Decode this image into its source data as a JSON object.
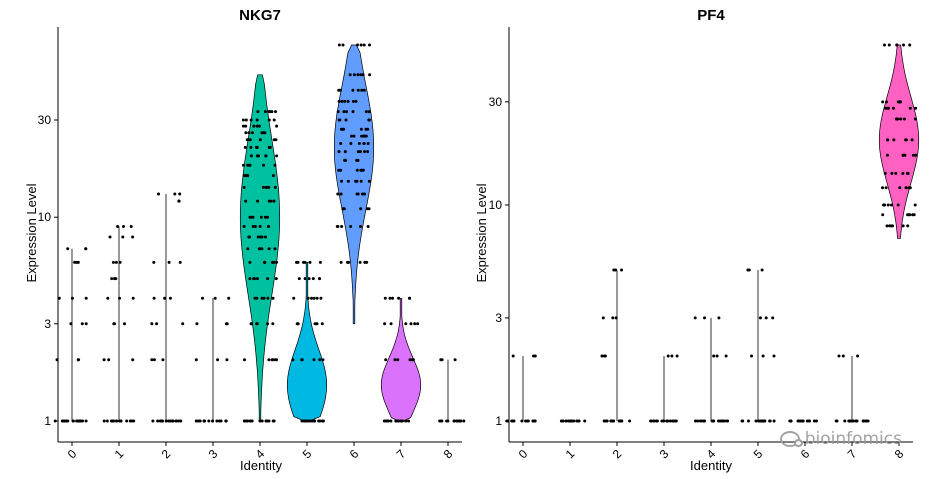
{
  "chart_data": [
    {
      "type": "violin",
      "title": "NKG7",
      "xlabel": "Identity",
      "ylabel": "Expression Level",
      "y_scale": "log",
      "ylim": [
        1,
        70
      ],
      "yticks": [
        1,
        3,
        10,
        30
      ],
      "y_tick_labels": [
        "1",
        "3",
        "10",
        "30"
      ],
      "categories": [
        "0",
        "1",
        "2",
        "3",
        "4",
        "5",
        "6",
        "7",
        "8"
      ],
      "violins": [
        {
          "category": "0",
          "color": "#f8766d",
          "draw_body": false,
          "min": 1,
          "max": 7,
          "point_levels": [
            1,
            2,
            3,
            4,
            6,
            7
          ]
        },
        {
          "category": "1",
          "color": "#d39200",
          "draw_body": false,
          "min": 1,
          "max": 9,
          "point_levels": [
            1,
            2,
            3,
            4,
            5,
            6,
            8,
            9
          ]
        },
        {
          "category": "2",
          "color": "#93aa00",
          "draw_body": false,
          "min": 1,
          "max": 13,
          "point_levels": [
            1,
            2,
            3,
            4,
            6,
            12,
            13
          ]
        },
        {
          "category": "3",
          "color": "#00ba38",
          "draw_body": false,
          "min": 1,
          "max": 4,
          "point_levels": [
            1,
            2,
            3,
            4
          ]
        },
        {
          "category": "4",
          "color": "#00c19f",
          "draw_body": true,
          "min": 1,
          "max": 50,
          "median": 10,
          "point_levels": [
            1,
            2,
            3,
            4,
            5,
            6,
            7,
            8,
            9,
            10,
            12,
            14,
            16,
            18,
            20,
            22,
            24,
            26,
            28,
            30,
            33
          ]
        },
        {
          "category": "5",
          "color": "#00b9e3",
          "draw_body": true,
          "min": 1,
          "max": 6,
          "median": 1.5,
          "point_levels": [
            1,
            2,
            3,
            4,
            5,
            6
          ]
        },
        {
          "category": "6",
          "color": "#619cff",
          "draw_body": true,
          "min": 3,
          "max": 70,
          "median": 22,
          "point_levels": [
            6,
            9,
            11,
            13,
            15,
            17,
            19,
            21,
            23,
            25,
            27,
            30,
            33,
            37,
            42,
            50,
            70
          ]
        },
        {
          "category": "7",
          "color": "#db72fb",
          "draw_body": true,
          "min": 1,
          "max": 4,
          "median": 1.5,
          "point_levels": [
            1,
            2,
            3,
            4
          ]
        },
        {
          "category": "8",
          "color": "#ff61c3",
          "draw_body": false,
          "min": 1,
          "max": 2,
          "point_levels": [
            1,
            2
          ]
        }
      ]
    },
    {
      "type": "violin",
      "title": "PF4",
      "xlabel": "Identity",
      "ylabel": "Expression Level",
      "y_scale": "log",
      "ylim": [
        1,
        55
      ],
      "yticks": [
        1,
        3,
        10,
        30
      ],
      "y_tick_labels": [
        "1",
        "3",
        "10",
        "30"
      ],
      "categories": [
        "0",
        "1",
        "2",
        "3",
        "4",
        "5",
        "6",
        "7",
        "8"
      ],
      "violins": [
        {
          "category": "0",
          "color": "#f8766d",
          "draw_body": false,
          "min": 1,
          "max": 2,
          "point_levels": [
            1,
            2
          ]
        },
        {
          "category": "1",
          "color": "#d39200",
          "draw_body": false,
          "min": 1,
          "max": 1,
          "point_levels": [
            1
          ]
        },
        {
          "category": "2",
          "color": "#93aa00",
          "draw_body": false,
          "min": 1,
          "max": 5,
          "point_levels": [
            1,
            2,
            3,
            5
          ]
        },
        {
          "category": "3",
          "color": "#00ba38",
          "draw_body": false,
          "min": 1,
          "max": 2,
          "point_levels": [
            1,
            2
          ]
        },
        {
          "category": "4",
          "color": "#00c19f",
          "draw_body": false,
          "min": 1,
          "max": 3,
          "point_levels": [
            1,
            2,
            3
          ]
        },
        {
          "category": "5",
          "color": "#00b9e3",
          "draw_body": false,
          "min": 1,
          "max": 5,
          "point_levels": [
            1,
            2,
            3,
            5
          ]
        },
        {
          "category": "6",
          "color": "#619cff",
          "draw_body": false,
          "min": 1,
          "max": 1,
          "point_levels": [
            1
          ]
        },
        {
          "category": "7",
          "color": "#db72fb",
          "draw_body": false,
          "min": 1,
          "max": 2,
          "point_levels": [
            1,
            2
          ]
        },
        {
          "category": "8",
          "color": "#ff61c3",
          "draw_body": true,
          "min": 7,
          "max": 55,
          "median": 20,
          "point_levels": [
            8,
            9,
            10,
            12,
            14,
            17,
            20,
            25,
            28,
            30,
            55
          ]
        }
      ]
    }
  ],
  "watermark": {
    "text": "bioinfomics"
  }
}
